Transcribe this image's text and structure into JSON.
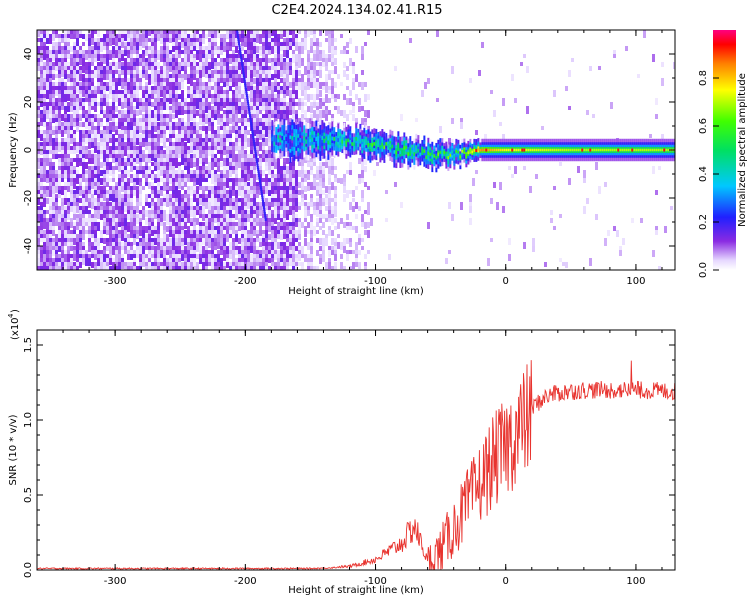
{
  "title": "C2E4.2024.134.02.41.R15",
  "chart_data": [
    {
      "type": "heatmap",
      "name": "spectrogram",
      "xlabel": "Height of straight line (km)",
      "ylabel": "Frequency (Hz)",
      "xlim": [
        -360,
        130
      ],
      "ylim": [
        -50,
        50
      ],
      "xticks": [
        -300,
        -200,
        -100,
        0,
        100
      ],
      "yticks": [
        -40,
        -20,
        0,
        20,
        40
      ],
      "colorbar": {
        "label": "Normalized spectral amplitude",
        "range": [
          0,
          1
        ],
        "ticks": [
          0.0,
          0.2,
          0.4,
          0.6,
          0.8
        ]
      },
      "signal_track": [
        {
          "x": -150,
          "freq": 4,
          "width": 3,
          "amp": 0.35
        },
        {
          "x": -120,
          "freq": 4,
          "width": 2.5,
          "amp": 0.45
        },
        {
          "x": -100,
          "freq": 2,
          "width": 2.5,
          "amp": 0.5
        },
        {
          "x": -80,
          "freq": 0,
          "width": 2.5,
          "amp": 0.5
        },
        {
          "x": -60,
          "freq": -2,
          "width": 2.5,
          "amp": 0.5
        },
        {
          "x": -40,
          "freq": -2,
          "width": 2,
          "amp": 0.55
        },
        {
          "x": -20,
          "freq": 0,
          "width": 1.8,
          "amp": 0.85
        },
        {
          "x": 0,
          "freq": 0,
          "width": 1.8,
          "amp": 0.75
        },
        {
          "x": 50,
          "freq": 0,
          "width": 1.8,
          "amp": 0.7
        },
        {
          "x": 100,
          "freq": 0,
          "width": 1.8,
          "amp": 0.7
        },
        {
          "x": 130,
          "freq": 0,
          "width": 1.8,
          "amp": 0.7
        }
      ]
    },
    {
      "type": "line",
      "name": "snr",
      "xlabel": "Height of straight line (km)",
      "ylabel": "SNR (10 * v/v)",
      "yscale_label": "(x10",
      "yscale_exp": "4",
      "xlim": [
        -360,
        130
      ],
      "ylim": [
        0,
        1.6
      ],
      "xticks": [
        -300,
        -200,
        -100,
        0,
        100
      ],
      "yticks": [
        0.0,
        0.5,
        1.0,
        1.5
      ],
      "color": "#e8332e",
      "envelope": [
        {
          "x": -360,
          "y": 0.01
        },
        {
          "x": -150,
          "y": 0.01
        },
        {
          "x": -120,
          "y": 0.02
        },
        {
          "x": -100,
          "y": 0.06
        },
        {
          "x": -80,
          "y": 0.15
        },
        {
          "x": -70,
          "y": 0.25
        },
        {
          "x": -60,
          "y": 0.05
        },
        {
          "x": -50,
          "y": 0.15
        },
        {
          "x": -40,
          "y": 0.3
        },
        {
          "x": -30,
          "y": 0.45
        },
        {
          "x": -20,
          "y": 0.6
        },
        {
          "x": -10,
          "y": 0.75
        },
        {
          "x": 0,
          "y": 0.85
        },
        {
          "x": 10,
          "y": 0.97
        },
        {
          "x": 20,
          "y": 1.08
        },
        {
          "x": 30,
          "y": 1.15
        },
        {
          "x": 40,
          "y": 1.18
        },
        {
          "x": 60,
          "y": 1.2
        },
        {
          "x": 80,
          "y": 1.2
        },
        {
          "x": 100,
          "y": 1.2
        },
        {
          "x": 130,
          "y": 1.19
        }
      ]
    }
  ]
}
